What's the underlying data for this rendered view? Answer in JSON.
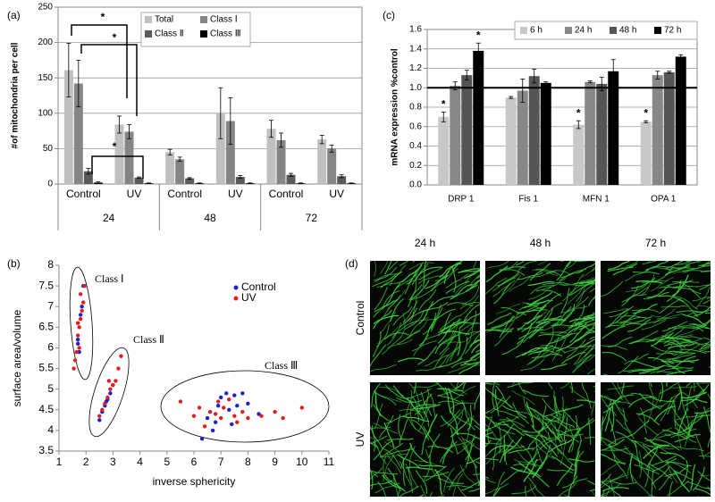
{
  "panel_labels": [
    "(a)",
    "(b)",
    "(c)",
    "(d)"
  ],
  "chart_data": [
    {
      "type": "bar",
      "y_label": "#of mitochondria per cell",
      "categories": [
        "Control",
        "UV",
        "Control",
        "UV",
        "Control",
        "UV"
      ],
      "group_labels": [
        "24",
        "48",
        "72"
      ],
      "ylim": [
        0,
        250
      ],
      "yticks": [
        0,
        50,
        100,
        150,
        200,
        250
      ],
      "grid": true,
      "series": [
        {
          "name": "Total",
          "color": "#c0c0c0",
          "values": [
            161,
            84,
            45,
            100,
            78,
            63
          ],
          "errors": [
            38,
            12,
            4,
            36,
            12,
            6
          ]
        },
        {
          "name": "Class Ⅰ",
          "color": "#858585",
          "values": [
            142,
            74,
            35,
            89,
            62,
            50
          ],
          "errors": [
            33,
            10,
            3,
            33,
            10,
            5
          ]
        },
        {
          "name": "Class Ⅱ",
          "color": "#5a5a5a",
          "values": [
            18,
            9,
            8,
            10,
            13,
            11
          ],
          "errors": [
            4,
            1,
            1,
            2,
            2,
            2
          ]
        },
        {
          "name": "Class Ⅲ",
          "color": "#000000",
          "values": [
            2,
            1,
            1,
            1,
            1,
            1
          ],
          "errors": [
            1,
            0.5,
            0.5,
            0.5,
            0.5,
            0.5
          ]
        }
      ],
      "annotations": [
        "*",
        "*",
        "*"
      ]
    },
    {
      "type": "scatter",
      "x_label": "inverse sphericity",
      "y_label": "surface area/volume",
      "xlim": [
        1,
        11
      ],
      "xticks": [
        1,
        2,
        3,
        4,
        5,
        6,
        7,
        8,
        9,
        10,
        11
      ],
      "ylim": [
        3.5,
        8
      ],
      "yticks": [
        3.5,
        4,
        4.5,
        5,
        5.5,
        6,
        6.5,
        7,
        7.5,
        8
      ],
      "series": [
        {
          "name": "Control",
          "color": "#1f1fd0",
          "x": [
            1.7,
            1.75,
            1.8,
            1.85,
            1.9,
            1.7,
            2.5,
            2.6,
            2.7,
            2.8,
            2.9,
            3.0,
            2.75,
            6.3,
            6.7,
            6.8,
            6.9,
            7.0,
            7.2,
            7.5,
            7.8,
            7.6,
            7.3,
            8.0,
            8.4,
            7.4,
            6.5
          ],
          "values": [
            6.1,
            5.9,
            6.8,
            7.0,
            7.5,
            6.2,
            4.25,
            4.45,
            4.6,
            4.75,
            4.9,
            5.1,
            4.7,
            3.8,
            4.0,
            4.2,
            4.6,
            4.8,
            4.9,
            4.85,
            4.9,
            4.6,
            4.5,
            4.65,
            4.4,
            4.15,
            4.3
          ]
        },
        {
          "name": "UV",
          "color": "#e02020",
          "x": [
            1.55,
            1.6,
            1.65,
            1.7,
            1.75,
            1.8,
            1.85,
            1.9,
            1.8,
            1.95,
            1.7,
            1.75,
            2.5,
            2.6,
            2.7,
            2.8,
            2.9,
            3.0,
            3.1,
            3.2,
            3.3,
            2.85,
            5.5,
            6.0,
            6.2,
            6.4,
            6.6,
            6.8,
            7.0,
            7.1,
            7.3,
            7.5,
            7.6,
            7.8,
            8.0,
            8.5,
            9.0,
            9.3,
            10.0,
            6.9
          ],
          "values": [
            5.5,
            5.7,
            5.9,
            6.3,
            6.5,
            6.7,
            6.9,
            7.1,
            7.3,
            7.5,
            6.6,
            6.0,
            4.35,
            4.5,
            4.65,
            4.8,
            5.0,
            5.1,
            5.2,
            5.5,
            5.8,
            5.2,
            4.7,
            4.35,
            4.55,
            4.1,
            4.45,
            4.4,
            4.3,
            4.55,
            4.75,
            4.35,
            4.2,
            4.45,
            4.3,
            4.35,
            4.45,
            4.3,
            4.55,
            4.7
          ]
        }
      ],
      "annotations": [
        "Class Ⅰ",
        "Class Ⅱ",
        "Class Ⅲ"
      ]
    },
    {
      "type": "bar",
      "y_label": "mRNA expression %control",
      "categories": [
        "DRP 1",
        "Fis 1",
        "MFN 1",
        "OPA 1"
      ],
      "ylim": [
        0,
        1.6
      ],
      "yticks": [
        {
          "value": 0,
          "label": "0.0"
        },
        0.2,
        0.4,
        0.6,
        0.8,
        {
          "value": 1,
          "label": "1.0"
        },
        1.2,
        1.4,
        1.6
      ],
      "grid": true,
      "reference_line": 1,
      "series": [
        {
          "name": "6 h",
          "color": "#c8c8c8",
          "values": [
            0.7,
            0.9,
            0.62,
            0.65
          ],
          "errors": [
            0.05,
            0.01,
            0.04,
            0.01
          ]
        },
        {
          "name": "24 h",
          "color": "#888888",
          "values": [
            1.02,
            0.97,
            1.06,
            1.13
          ],
          "errors": [
            0.04,
            0.12,
            0.01,
            0.04
          ]
        },
        {
          "name": "48 h",
          "color": "#555555",
          "values": [
            1.13,
            1.12,
            1.04,
            1.16
          ],
          "errors": [
            0.05,
            0.07,
            0.07,
            0.01
          ]
        },
        {
          "name": "72 h",
          "color": "#000000",
          "values": [
            1.38,
            1.05,
            1.17,
            1.32
          ],
          "errors": [
            0.08,
            0.01,
            0.12,
            0.02
          ]
        }
      ],
      "annotations": [
        "*",
        "*",
        "*",
        "*"
      ]
    }
  ],
  "micrographs": {
    "columns": [
      "24 h",
      "48 h",
      "72 h"
    ],
    "rows": [
      "Control",
      "UV"
    ]
  }
}
